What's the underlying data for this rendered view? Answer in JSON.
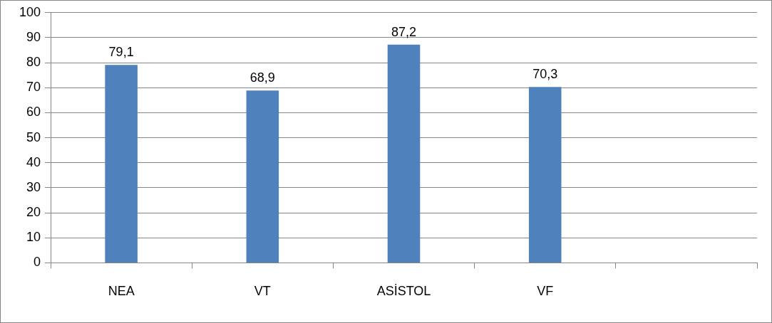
{
  "chart_data": {
    "type": "bar",
    "categories": [
      "NEA",
      "VT",
      "ASİSTOL",
      "VF",
      null
    ],
    "values": [
      79.1,
      68.9,
      87.2,
      70.3,
      null
    ],
    "value_labels": [
      "79,1",
      "68,9",
      "87,2",
      "70,3",
      null
    ],
    "color": "#4f81bd",
    "ylim": [
      0,
      100
    ],
    "yticks": [
      0,
      10,
      20,
      30,
      40,
      50,
      60,
      70,
      80,
      90,
      100
    ],
    "grid": "y",
    "legend": false
  }
}
